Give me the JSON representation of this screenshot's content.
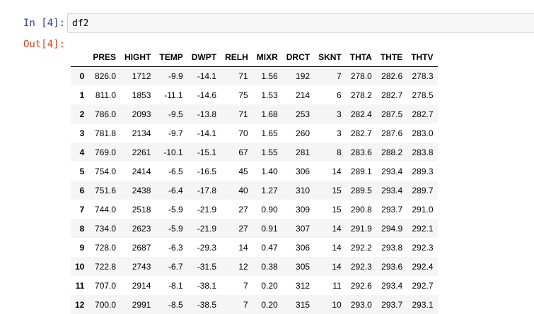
{
  "cell": {
    "in_prompt": "In [4]:",
    "out_prompt": "Out[4]:",
    "code": "df2"
  },
  "table": {
    "columns": [
      "",
      "PRES",
      "HIGHT",
      "TEMP",
      "DWPT",
      "RELH",
      "MIXR",
      "DRCT",
      "SKNT",
      "THTA",
      "THTE",
      "THTV"
    ],
    "rows": [
      [
        "0",
        "826.0",
        "1712",
        "-9.9",
        "-14.1",
        "71",
        "1.56",
        "192",
        "7",
        "278.0",
        "282.6",
        "278.3"
      ],
      [
        "1",
        "811.0",
        "1853",
        "-11.1",
        "-14.6",
        "75",
        "1.53",
        "214",
        "6",
        "278.2",
        "282.7",
        "278.5"
      ],
      [
        "2",
        "786.0",
        "2093",
        "-9.5",
        "-13.8",
        "71",
        "1.68",
        "253",
        "3",
        "282.4",
        "287.5",
        "282.7"
      ],
      [
        "3",
        "781.8",
        "2134",
        "-9.7",
        "-14.1",
        "70",
        "1.65",
        "260",
        "3",
        "282.7",
        "287.6",
        "283.0"
      ],
      [
        "4",
        "769.0",
        "2261",
        "-10.1",
        "-15.1",
        "67",
        "1.55",
        "281",
        "8",
        "283.6",
        "288.2",
        "283.8"
      ],
      [
        "5",
        "754.0",
        "2414",
        "-6.5",
        "-16.5",
        "45",
        "1.40",
        "306",
        "14",
        "289.1",
        "293.4",
        "289.3"
      ],
      [
        "6",
        "751.6",
        "2438",
        "-6.4",
        "-17.8",
        "40",
        "1.27",
        "310",
        "15",
        "289.5",
        "293.4",
        "289.7"
      ],
      [
        "7",
        "744.0",
        "2518",
        "-5.9",
        "-21.9",
        "27",
        "0.90",
        "309",
        "15",
        "290.8",
        "293.7",
        "291.0"
      ],
      [
        "8",
        "734.0",
        "2623",
        "-5.9",
        "-21.9",
        "27",
        "0.91",
        "307",
        "14",
        "291.9",
        "294.9",
        "292.1"
      ],
      [
        "9",
        "728.0",
        "2687",
        "-6.3",
        "-29.3",
        "14",
        "0.47",
        "306",
        "14",
        "292.2",
        "293.8",
        "292.3"
      ],
      [
        "10",
        "722.8",
        "2743",
        "-6.7",
        "-31.5",
        "12",
        "0.38",
        "305",
        "14",
        "292.3",
        "293.6",
        "292.4"
      ],
      [
        "11",
        "707.0",
        "2914",
        "-8.1",
        "-38.1",
        "7",
        "0.20",
        "312",
        "11",
        "292.6",
        "293.4",
        "292.7"
      ],
      [
        "12",
        "700.0",
        "2991",
        "-8.5",
        "-38.5",
        "7",
        "0.20",
        "315",
        "10",
        "293.0",
        "293.7",
        "293.1"
      ]
    ]
  }
}
